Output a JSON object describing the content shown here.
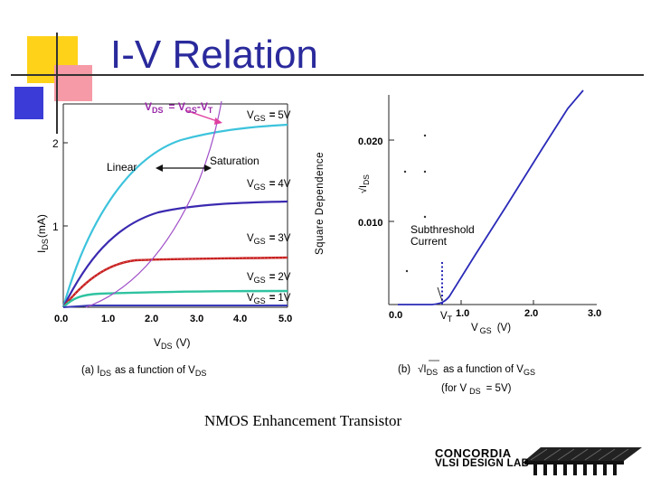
{
  "slide": {
    "title": "I-V Relation",
    "footer_title": "NMOS Enhancement Transistor",
    "logo_line1": "CONCORDIA",
    "logo_line2": "VLSI DESIGN LAB"
  },
  "left_plot": {
    "ylabel_main": "I",
    "ylabel_sub": "DS",
    "ylabel_unit": "(mA)",
    "xlabel_main": "V",
    "xlabel_sub": "DS",
    "xlabel_unit": "(V)",
    "y_ticks": [
      "2",
      "1"
    ],
    "x_ticks": [
      "0.0",
      "1.0",
      "2.0",
      "3.0",
      "4.0",
      "5.0"
    ],
    "top_ann_v1": "V",
    "top_ann_sub1": "DS",
    "top_ann_eq": "= V",
    "top_ann_sub2": "GS",
    "top_ann_tail": "-V",
    "top_ann_sub3": "T",
    "linear_label": "Linear",
    "saturation_label": "Saturation",
    "caption_main": "(a) I",
    "caption_sub": "DS",
    "caption_mid": "as a function of V",
    "caption_sub2": "DS",
    "curve_labels": [
      {
        "v": "V",
        "sub": "GS",
        "eq": "=",
        "val": "5V"
      },
      {
        "v": "V",
        "sub": "GS",
        "eq": "=",
        "val": "4V"
      },
      {
        "v": "V",
        "sub": "GS",
        "eq": "=",
        "val": "3V"
      },
      {
        "v": "V",
        "sub": "GS",
        "eq": "=",
        "val": "2V"
      },
      {
        "v": "V",
        "sub": "GS",
        "eq": "=",
        "val": "1V"
      }
    ]
  },
  "right_plot": {
    "side_label": "Square Dependence",
    "ylabel_sqrt": "√",
    "ylabel_main": "I",
    "ylabel_sub": "DS",
    "y_ticks": [
      "0.020",
      "0.010",
      "0.0"
    ],
    "x_ticks": [
      "1.0",
      "2.0",
      "3.0"
    ],
    "vt_main": "V",
    "vt_sub": "T",
    "subthreshold_line1": "Subthreshold",
    "subthreshold_line2": "Current",
    "xlabel_main": "V",
    "xlabel_sub": "GS",
    "xlabel_unit": "(V)",
    "caption_b": "(b)",
    "caption_sqrt": "√",
    "caption_main": "I",
    "caption_sub": "DS",
    "caption_mid": "as a function of V",
    "caption_sub2": "GS",
    "caption2_pre": "(for V",
    "caption2_sub": "DS",
    "caption2_post": "= 5V)"
  },
  "colors": {
    "title": "#2a2a9c",
    "vgs5": "#3cc3dc",
    "vgs4": "#3a2ab0",
    "vgs3": "#c82020",
    "vgs2": "#2fc3a0",
    "vgs1": "#3a3ab8",
    "parabola": "#a050c8",
    "arrow_pink": "#e040a0",
    "right_curve": "#2a2ab8"
  }
}
